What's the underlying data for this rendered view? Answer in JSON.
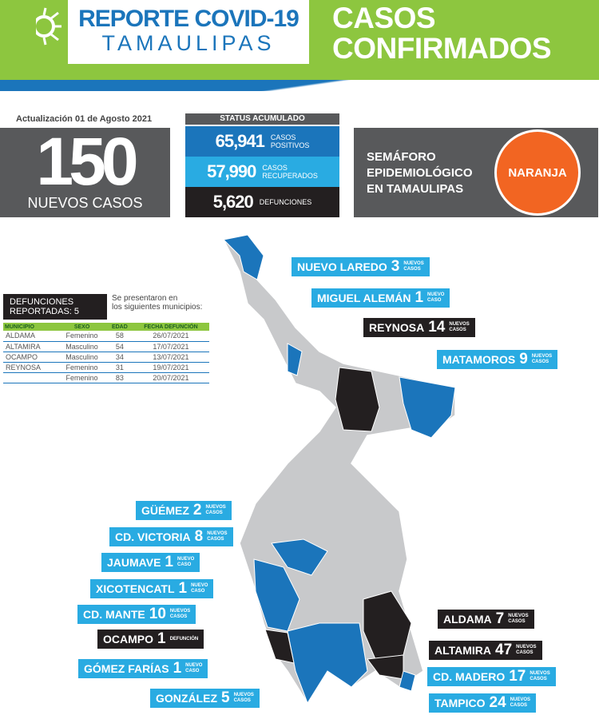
{
  "header": {
    "title_line1": "REPORTE COVID-19",
    "title_line2": "TAMAULIPAS",
    "section_line1": "CASOS",
    "section_line2": "CONFIRMADOS",
    "logo_icon": "virus-icon"
  },
  "colors": {
    "green": "#8dc63f",
    "blue": "#1b75bb",
    "light_blue": "#29abe2",
    "black": "#231f20",
    "gray": "#58595b",
    "orange": "#f26522",
    "map_gray": "#c8c9cb"
  },
  "update": "Actualización 01 de Agosto 2021",
  "new_cases": {
    "value": "150",
    "label": "NUEVOS CASOS"
  },
  "status": {
    "title": "STATUS ACUMULADO",
    "rows": [
      {
        "value": "65,941",
        "label1": "CASOS",
        "label2": "POSITIVOS"
      },
      {
        "value": "57,990",
        "label1": "CASOS",
        "label2": "RECUPERADOS"
      },
      {
        "value": "5,620",
        "label1": "DEFUNCIONES",
        "label2": ""
      }
    ]
  },
  "semaforo": {
    "line1": "SEMÁFORO",
    "line2": "EPIDEMIOLÓGICO",
    "line3": "EN TAMAULIPAS",
    "level": "NARANJA"
  },
  "deaths": {
    "title1": "DEFUNCIONES",
    "title2": "REPORTADAS: 5",
    "note1": "Se presentaron en",
    "note2": "los siguientes municipios:",
    "headers": [
      "MUNICIPIO",
      "SEXO",
      "EDAD",
      "FECHA DEFUNCIÓN"
    ],
    "rows": [
      [
        "ALDAMA",
        "Femenino",
        "58",
        "26/07/2021"
      ],
      [
        "ALTAMIRA",
        "Masculino",
        "54",
        "17/07/2021"
      ],
      [
        "OCAMPO",
        "Masculino",
        "34",
        "13/07/2021"
      ],
      [
        "REYNOSA",
        "Femenino",
        "31",
        "19/07/2021"
      ],
      [
        "",
        "Femenino",
        "83",
        "20/07/2021"
      ]
    ]
  },
  "map_labels": [
    {
      "name": "NUEVO LAREDO",
      "n": "3",
      "s1": "NUEVOS",
      "s2": "CASOS"
    },
    {
      "name": "MIGUEL ALEMÁN",
      "n": "1",
      "s1": "NUEVO",
      "s2": "CASO"
    },
    {
      "name": "REYNOSA",
      "n": "14",
      "s1": "NUEVOS",
      "s2": "CASOS"
    },
    {
      "name": "MATAMOROS",
      "n": "9",
      "s1": "NUEVOS",
      "s2": "CASOS"
    },
    {
      "name": "GÜÉMEZ",
      "n": "2",
      "s1": "NUEVOS",
      "s2": "CASOS"
    },
    {
      "name": "CD. VICTORIA",
      "n": "8",
      "s1": "NUEVOS",
      "s2": "CASOS"
    },
    {
      "name": "JAUMAVE",
      "n": "1",
      "s1": "NUEVO",
      "s2": "CASO"
    },
    {
      "name": "XICOTENCATL",
      "n": "1",
      "s1": "NUEVO",
      "s2": "CASO"
    },
    {
      "name": "CD. MANTE",
      "n": "10",
      "s1": "NUEVOS",
      "s2": "CASOS"
    },
    {
      "name": "OCAMPO",
      "n": "1",
      "s1": "DEFUNCIÓN",
      "s2": ""
    },
    {
      "name": "GÓMEZ FARÍAS",
      "n": "1",
      "s1": "NUEVO",
      "s2": "CASO"
    },
    {
      "name": "GONZÁLEZ",
      "n": "5",
      "s1": "NUEVOS",
      "s2": "CASOS"
    },
    {
      "name": "ALDAMA",
      "n": "7",
      "s1": "NUEVOS",
      "s2": "CASOS"
    },
    {
      "name": "ALTAMIRA",
      "n": "47",
      "s1": "NUEVOS",
      "s2": "CASOS"
    },
    {
      "name": "CD. MADERO",
      "n": "17",
      "s1": "NUEVOS",
      "s2": "CASOS"
    },
    {
      "name": "TAMPICO",
      "n": "24",
      "s1": "NUEVOS",
      "s2": "CASOS"
    }
  ]
}
